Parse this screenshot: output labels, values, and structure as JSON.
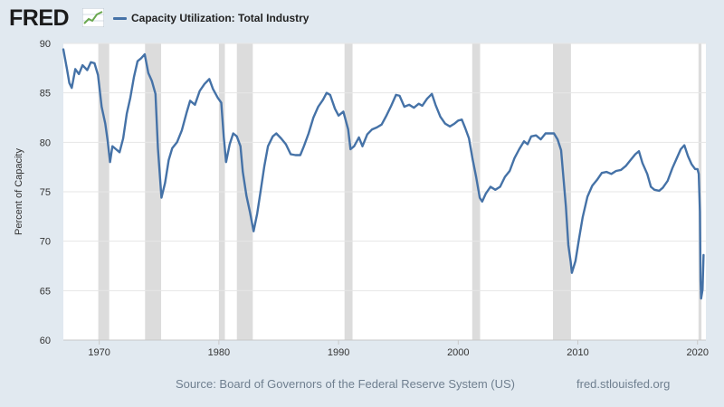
{
  "header": {
    "logo_text": "FRED",
    "logo_icon": "trend-line-icon",
    "series_title": "Capacity Utilization: Total Industry",
    "series_color": "#4572a7"
  },
  "footer": {
    "source": "Source: Board of Governors of the Federal Reserve System (US)",
    "site": "fred.stlouisfed.org"
  },
  "chart_data": {
    "type": "line",
    "title": "Capacity Utilization: Total Industry",
    "ylabel": "Percent of Capacity",
    "xlabel": "",
    "xlim": [
      1967.0,
      2020.7
    ],
    "ylim": [
      60,
      90
    ],
    "y_ticks": [
      60,
      65,
      70,
      75,
      80,
      85,
      90
    ],
    "x_ticks": [
      1970,
      1980,
      1990,
      2000,
      2010,
      2020
    ],
    "grid": "horizontal",
    "line_color": "#4572a7",
    "recession_color": "#dcdcdc",
    "recessions": [
      [
        1969.92,
        1970.83
      ],
      [
        1973.83,
        1975.17
      ],
      [
        1980.0,
        1980.5
      ],
      [
        1981.5,
        1982.83
      ],
      [
        1990.5,
        1991.17
      ],
      [
        2001.17,
        2001.83
      ],
      [
        2007.92,
        2009.42
      ],
      [
        2020.08,
        2020.33
      ]
    ],
    "series": [
      {
        "name": "Capacity Utilization: Total Industry",
        "points": [
          [
            1967.0,
            89.4
          ],
          [
            1967.3,
            87.4
          ],
          [
            1967.5,
            86.0
          ],
          [
            1967.7,
            85.5
          ],
          [
            1968.0,
            87.4
          ],
          [
            1968.3,
            86.9
          ],
          [
            1968.6,
            87.8
          ],
          [
            1969.0,
            87.3
          ],
          [
            1969.3,
            88.1
          ],
          [
            1969.6,
            88.0
          ],
          [
            1969.9,
            86.8
          ],
          [
            1970.2,
            83.6
          ],
          [
            1970.5,
            81.9
          ],
          [
            1970.7,
            80.2
          ],
          [
            1970.9,
            78.0
          ],
          [
            1971.1,
            79.6
          ],
          [
            1971.4,
            79.3
          ],
          [
            1971.7,
            79.0
          ],
          [
            1972.0,
            80.4
          ],
          [
            1972.3,
            82.9
          ],
          [
            1972.6,
            84.5
          ],
          [
            1972.9,
            86.6
          ],
          [
            1973.2,
            88.2
          ],
          [
            1973.5,
            88.5
          ],
          [
            1973.8,
            88.9
          ],
          [
            1974.1,
            87.0
          ],
          [
            1974.4,
            86.2
          ],
          [
            1974.7,
            84.9
          ],
          [
            1974.9,
            79.4
          ],
          [
            1975.2,
            74.4
          ],
          [
            1975.5,
            75.9
          ],
          [
            1975.8,
            78.2
          ],
          [
            1976.1,
            79.4
          ],
          [
            1976.5,
            80.0
          ],
          [
            1976.9,
            81.2
          ],
          [
            1977.3,
            83.0
          ],
          [
            1977.6,
            84.2
          ],
          [
            1978.0,
            83.8
          ],
          [
            1978.4,
            85.2
          ],
          [
            1978.8,
            85.9
          ],
          [
            1979.2,
            86.4
          ],
          [
            1979.5,
            85.4
          ],
          [
            1979.9,
            84.5
          ],
          [
            1980.2,
            84.0
          ],
          [
            1980.4,
            80.6
          ],
          [
            1980.6,
            78.0
          ],
          [
            1980.9,
            79.8
          ],
          [
            1981.2,
            80.9
          ],
          [
            1981.5,
            80.6
          ],
          [
            1981.8,
            79.6
          ],
          [
            1982.0,
            77.0
          ],
          [
            1982.3,
            74.6
          ],
          [
            1982.6,
            72.9
          ],
          [
            1982.9,
            71.0
          ],
          [
            1983.2,
            72.8
          ],
          [
            1983.5,
            75.2
          ],
          [
            1983.8,
            77.6
          ],
          [
            1984.1,
            79.6
          ],
          [
            1984.5,
            80.6
          ],
          [
            1984.8,
            80.9
          ],
          [
            1985.2,
            80.4
          ],
          [
            1985.6,
            79.8
          ],
          [
            1986.0,
            78.8
          ],
          [
            1986.4,
            78.7
          ],
          [
            1986.8,
            78.7
          ],
          [
            1987.1,
            79.6
          ],
          [
            1987.5,
            80.9
          ],
          [
            1987.9,
            82.5
          ],
          [
            1988.3,
            83.6
          ],
          [
            1988.7,
            84.3
          ],
          [
            1989.0,
            85.0
          ],
          [
            1989.3,
            84.8
          ],
          [
            1989.7,
            83.4
          ],
          [
            1990.0,
            82.7
          ],
          [
            1990.4,
            83.1
          ],
          [
            1990.8,
            81.3
          ],
          [
            1991.0,
            79.3
          ],
          [
            1991.3,
            79.6
          ],
          [
            1991.7,
            80.5
          ],
          [
            1992.0,
            79.6
          ],
          [
            1992.4,
            80.8
          ],
          [
            1992.8,
            81.3
          ],
          [
            1993.2,
            81.5
          ],
          [
            1993.6,
            81.8
          ],
          [
            1994.0,
            82.7
          ],
          [
            1994.4,
            83.7
          ],
          [
            1994.8,
            84.8
          ],
          [
            1995.1,
            84.7
          ],
          [
            1995.5,
            83.6
          ],
          [
            1995.9,
            83.8
          ],
          [
            1996.3,
            83.5
          ],
          [
            1996.7,
            83.9
          ],
          [
            1997.0,
            83.7
          ],
          [
            1997.4,
            84.4
          ],
          [
            1997.8,
            84.9
          ],
          [
            1998.1,
            83.8
          ],
          [
            1998.5,
            82.6
          ],
          [
            1998.9,
            81.9
          ],
          [
            1999.3,
            81.6
          ],
          [
            1999.7,
            81.9
          ],
          [
            2000.0,
            82.2
          ],
          [
            2000.3,
            82.3
          ],
          [
            2000.6,
            81.4
          ],
          [
            2000.9,
            80.4
          ],
          [
            2001.2,
            78.3
          ],
          [
            2001.5,
            76.5
          ],
          [
            2001.8,
            74.4
          ],
          [
            2002.0,
            74.0
          ],
          [
            2002.3,
            74.8
          ],
          [
            2002.7,
            75.5
          ],
          [
            2003.1,
            75.2
          ],
          [
            2003.5,
            75.5
          ],
          [
            2003.9,
            76.5
          ],
          [
            2004.3,
            77.1
          ],
          [
            2004.7,
            78.4
          ],
          [
            2005.1,
            79.3
          ],
          [
            2005.5,
            80.1
          ],
          [
            2005.8,
            79.8
          ],
          [
            2006.1,
            80.6
          ],
          [
            2006.5,
            80.7
          ],
          [
            2006.9,
            80.3
          ],
          [
            2007.3,
            80.9
          ],
          [
            2007.7,
            80.9
          ],
          [
            2008.0,
            80.9
          ],
          [
            2008.3,
            80.3
          ],
          [
            2008.6,
            79.2
          ],
          [
            2008.8,
            76.3
          ],
          [
            2009.0,
            73.5
          ],
          [
            2009.2,
            69.6
          ],
          [
            2009.4,
            67.9
          ],
          [
            2009.5,
            66.8
          ],
          [
            2009.8,
            68.0
          ],
          [
            2010.1,
            70.3
          ],
          [
            2010.4,
            72.4
          ],
          [
            2010.8,
            74.5
          ],
          [
            2011.2,
            75.6
          ],
          [
            2011.6,
            76.2
          ],
          [
            2012.0,
            76.9
          ],
          [
            2012.4,
            77.0
          ],
          [
            2012.8,
            76.8
          ],
          [
            2013.2,
            77.1
          ],
          [
            2013.6,
            77.2
          ],
          [
            2014.0,
            77.6
          ],
          [
            2014.4,
            78.2
          ],
          [
            2014.8,
            78.8
          ],
          [
            2015.1,
            79.1
          ],
          [
            2015.4,
            77.9
          ],
          [
            2015.8,
            76.8
          ],
          [
            2016.1,
            75.5
          ],
          [
            2016.4,
            75.2
          ],
          [
            2016.8,
            75.1
          ],
          [
            2017.1,
            75.4
          ],
          [
            2017.5,
            76.1
          ],
          [
            2017.9,
            77.4
          ],
          [
            2018.2,
            78.2
          ],
          [
            2018.6,
            79.3
          ],
          [
            2018.9,
            79.7
          ],
          [
            2019.2,
            78.6
          ],
          [
            2019.5,
            77.8
          ],
          [
            2019.8,
            77.3
          ],
          [
            2020.0,
            77.3
          ],
          [
            2020.1,
            76.8
          ],
          [
            2020.2,
            73.0
          ],
          [
            2020.25,
            66.0
          ],
          [
            2020.3,
            64.2
          ],
          [
            2020.42,
            65.1
          ],
          [
            2020.5,
            68.6
          ]
        ]
      }
    ]
  }
}
